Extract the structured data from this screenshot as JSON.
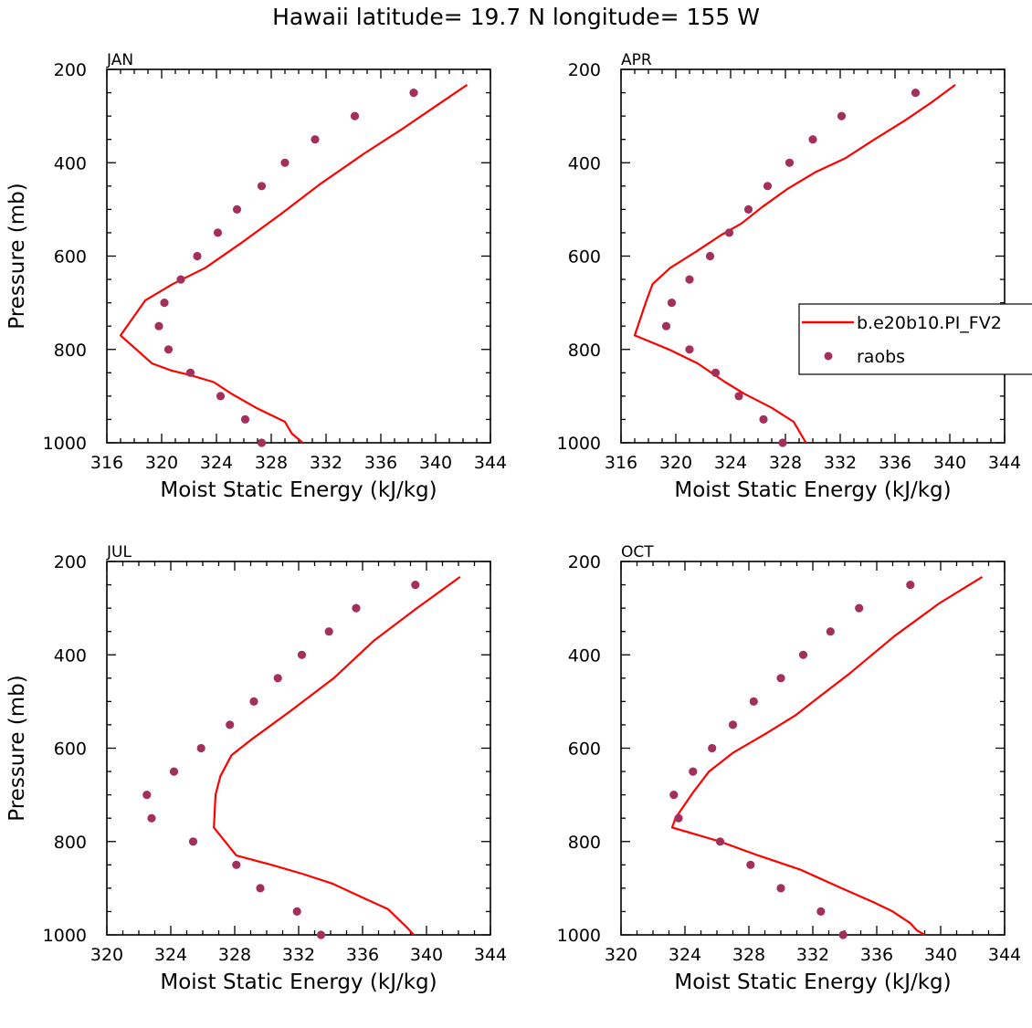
{
  "figure": {
    "title": "Hawaii  latitude= 19.7 N longitude= 155 W"
  },
  "colors": {
    "model_line": "#ff0000",
    "raobs_marker": "#a3305a",
    "axes": "#000000"
  },
  "legend": {
    "entries": [
      {
        "label": "b.e20b10.PI_FV2",
        "style": "line"
      },
      {
        "label": "raobs",
        "style": "marker"
      }
    ],
    "location": "center-right of APR panel"
  },
  "chart_data": [
    {
      "type": "line",
      "panel_label": "JAN",
      "xlabel": "Moist Static Energy (kJ/kg)",
      "ylabel": "Pressure (mb)",
      "xlim": [
        316,
        344
      ],
      "ylim": [
        1000,
        200
      ],
      "y_inverted": true,
      "xticks": [
        316,
        320,
        324,
        328,
        332,
        336,
        340,
        344
      ],
      "yticks": [
        200,
        400,
        600,
        800,
        1000
      ],
      "series": [
        {
          "name": "b.e20b10.PI_FV2",
          "kind": "line",
          "x": [
            342.3,
            340.2,
            337.7,
            334.8,
            331.6,
            328.7,
            325.9,
            323.2,
            320.8,
            318.8,
            317.0,
            319.3,
            320.7,
            322.1,
            323.8,
            325.1,
            326.9,
            329.0,
            329.5,
            330.3
          ],
          "y": [
            233,
            275,
            325,
            380,
            445,
            510,
            570,
            625,
            660,
            695,
            770,
            830,
            845,
            855,
            870,
            895,
            925,
            955,
            980,
            1000
          ]
        },
        {
          "name": "raobs",
          "kind": "scatter",
          "x": [
            338.4,
            334.1,
            331.2,
            329.0,
            327.3,
            325.5,
            324.1,
            322.6,
            321.4,
            320.2,
            319.8,
            320.5,
            322.1,
            324.3,
            326.1,
            327.3
          ],
          "y": [
            250,
            300,
            350,
            400,
            450,
            500,
            550,
            600,
            650,
            700,
            750,
            800,
            850,
            900,
            950,
            1000
          ]
        }
      ]
    },
    {
      "type": "line",
      "panel_label": "APR",
      "xlabel": "Moist Static Energy (kJ/kg)",
      "ylabel": "",
      "xlim": [
        316,
        344
      ],
      "ylim": [
        1000,
        200
      ],
      "y_inverted": true,
      "xticks": [
        316,
        320,
        324,
        328,
        332,
        336,
        340,
        344
      ],
      "yticks": [
        200,
        400,
        600,
        800,
        1000
      ],
      "series": [
        {
          "name": "b.e20b10.PI_FV2",
          "kind": "line",
          "x": [
            340.4,
            338.7,
            336.7,
            334.5,
            332.4,
            330.2,
            328.2,
            326.3,
            324.8,
            323.3,
            321.5,
            319.6,
            318.3,
            317.8,
            317.0,
            319.5,
            321.6,
            322.6,
            323.6,
            325.0,
            327.0,
            328.6,
            329.1,
            329.5
          ],
          "y": [
            233,
            270,
            310,
            350,
            390,
            420,
            455,
            495,
            530,
            555,
            590,
            625,
            660,
            700,
            770,
            800,
            830,
            850,
            870,
            895,
            925,
            955,
            980,
            1000
          ]
        },
        {
          "name": "raobs",
          "kind": "scatter",
          "x": [
            337.5,
            332.1,
            330.0,
            328.3,
            326.7,
            325.3,
            323.9,
            322.5,
            321.0,
            319.7,
            319.3,
            321.0,
            322.9,
            324.6,
            326.4,
            327.8
          ],
          "y": [
            250,
            300,
            350,
            400,
            450,
            500,
            550,
            600,
            650,
            700,
            750,
            800,
            850,
            900,
            950,
            1000
          ]
        }
      ]
    },
    {
      "type": "line",
      "panel_label": "JUL",
      "xlabel": "Moist Static Energy (kJ/kg)",
      "ylabel": "Pressure (mb)",
      "xlim": [
        320,
        344
      ],
      "ylim": [
        1000,
        200
      ],
      "y_inverted": true,
      "xticks": [
        320,
        324,
        328,
        332,
        336,
        340,
        344
      ],
      "yticks": [
        200,
        400,
        600,
        800,
        1000
      ],
      "series": [
        {
          "name": "b.e20b10.PI_FV2",
          "kind": "line",
          "x": [
            342.1,
            339.4,
            336.7,
            334.2,
            331.5,
            329.1,
            327.8,
            327.1,
            326.8,
            326.7,
            328.1,
            330.3,
            332.3,
            334.1,
            336.0,
            337.6,
            338.5,
            338.8,
            339.2
          ],
          "y": [
            233,
            300,
            370,
            450,
            520,
            580,
            615,
            660,
            700,
            770,
            830,
            850,
            870,
            890,
            920,
            945,
            975,
            985,
            1000
          ]
        },
        {
          "name": "raobs",
          "kind": "scatter",
          "x": [
            339.3,
            335.6,
            333.9,
            332.2,
            330.7,
            329.2,
            327.7,
            325.9,
            324.2,
            322.5,
            322.8,
            325.4,
            328.1,
            329.6,
            331.9,
            333.4
          ],
          "y": [
            250,
            300,
            350,
            400,
            450,
            500,
            550,
            600,
            650,
            700,
            750,
            800,
            850,
            900,
            950,
            1000
          ]
        }
      ]
    },
    {
      "type": "line",
      "panel_label": "OCT",
      "xlabel": "Moist Static Energy (kJ/kg)",
      "ylabel": "",
      "xlim": [
        320,
        344
      ],
      "ylim": [
        1000,
        200
      ],
      "y_inverted": true,
      "xticks": [
        320,
        324,
        328,
        332,
        336,
        340,
        344
      ],
      "yticks": [
        200,
        400,
        600,
        800,
        1000
      ],
      "series": [
        {
          "name": "b.e20b10.PI_FV2",
          "kind": "line",
          "x": [
            342.6,
            339.9,
            337.1,
            334.3,
            332.4,
            330.9,
            329.0,
            327.0,
            325.5,
            324.5,
            323.8,
            323.4,
            323.2,
            326.2,
            328.6,
            331.2,
            333.8,
            335.8,
            337.0,
            338.1,
            338.5,
            339.0
          ],
          "y": [
            233,
            290,
            360,
            440,
            490,
            530,
            570,
            610,
            650,
            695,
            730,
            750,
            770,
            800,
            830,
            860,
            900,
            930,
            950,
            975,
            990,
            1000
          ]
        },
        {
          "name": "raobs",
          "kind": "scatter",
          "x": [
            338.1,
            334.9,
            333.1,
            331.4,
            330.0,
            328.3,
            327.0,
            325.7,
            324.5,
            323.3,
            323.6,
            326.2,
            328.1,
            330.0,
            332.5,
            333.9
          ],
          "y": [
            250,
            300,
            350,
            400,
            450,
            500,
            550,
            600,
            650,
            700,
            750,
            800,
            850,
            900,
            950,
            1000
          ]
        }
      ]
    }
  ]
}
